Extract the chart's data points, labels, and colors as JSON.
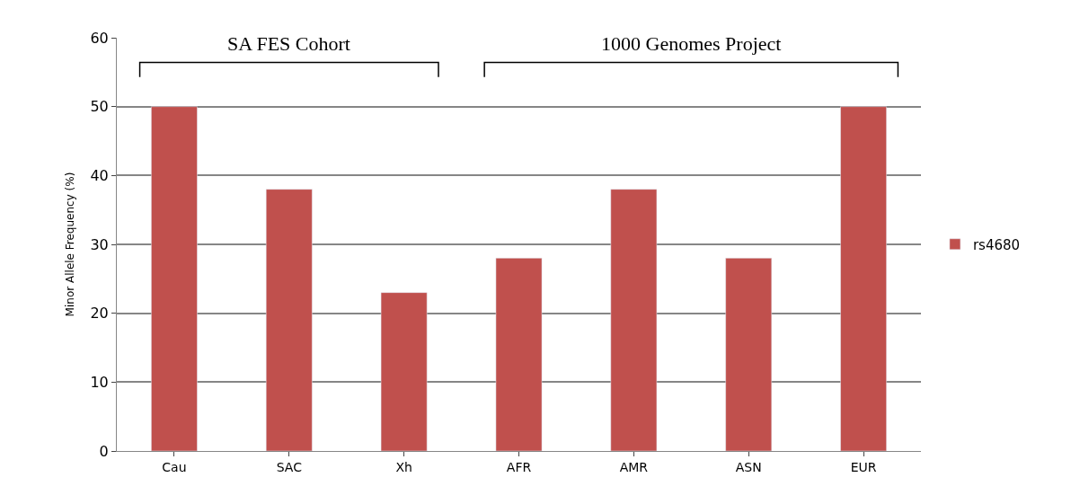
{
  "chart_data": {
    "type": "bar",
    "ylabel": "Minor Allele Frequency (%)",
    "categories": [
      "Cau",
      "SAC",
      "Xh",
      "AFR",
      "AMR",
      "ASN",
      "EUR"
    ],
    "series": [
      {
        "name": "rs4680",
        "color": "#c0504d",
        "values": [
          50,
          38,
          23,
          28,
          38,
          28,
          50
        ]
      }
    ],
    "ylim": [
      0,
      60
    ],
    "yticks": [
      0,
      10,
      20,
      30,
      40,
      50,
      60
    ],
    "grid": "y",
    "legend": "right",
    "annotations": [
      "SA FES Cohort",
      "1000 Genomes Project"
    ]
  }
}
